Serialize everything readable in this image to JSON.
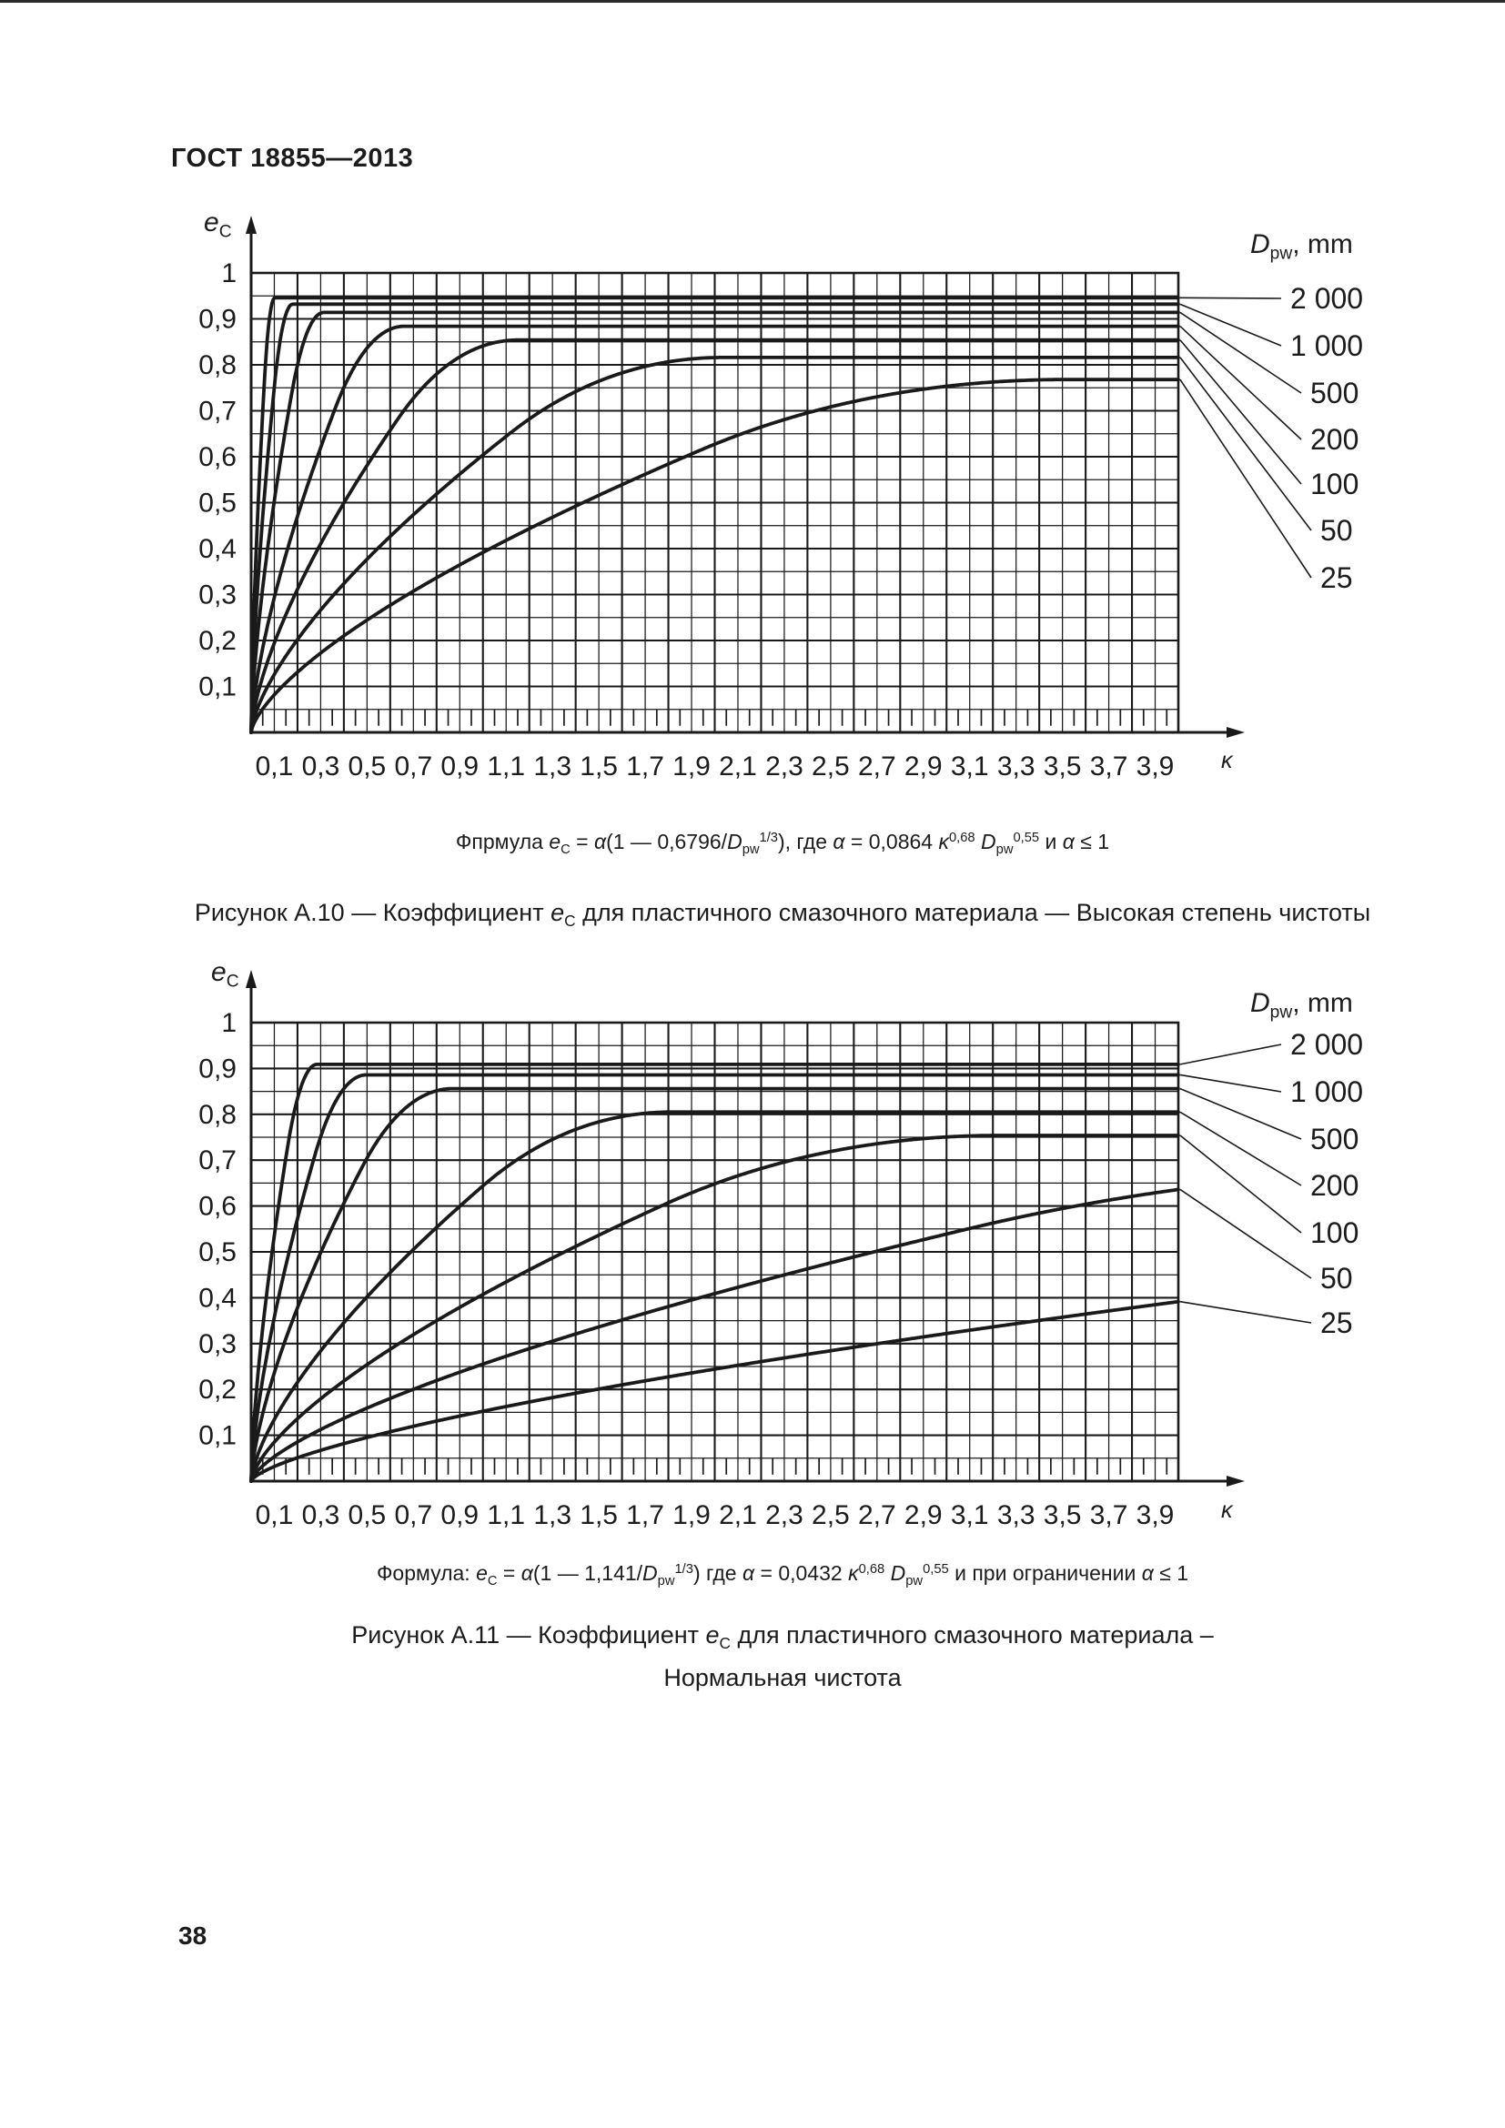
{
  "page": {
    "header": "ГОСТ 18855—2013",
    "page_number": "38"
  },
  "figures": [
    {
      "id": "A.10",
      "y_axis_title": [
        {
          "t": "e",
          "i": 1
        },
        {
          "t": "C",
          "v": "sub"
        }
      ],
      "x_axis_title": [
        {
          "t": "κ",
          "i": 1
        }
      ],
      "legend_title": [
        {
          "t": "D",
          "i": 1
        },
        {
          "t": "pw",
          "v": "sub"
        },
        {
          "t": ", mm"
        }
      ],
      "formula": [
        {
          "t": "Фпрмула "
        },
        {
          "t": "e",
          "i": 1
        },
        {
          "t": "C",
          "v": "sub"
        },
        {
          "t": " = "
        },
        {
          "t": "α",
          "i": 1
        },
        {
          "t": "(1 — 0,6796/"
        },
        {
          "t": "D",
          "i": 1
        },
        {
          "t": "pw",
          "v": "sub"
        },
        {
          "t": "1/3",
          "v": "sup"
        },
        {
          "t": "), где "
        },
        {
          "t": "α",
          "i": 1
        },
        {
          "t": " = 0,0864 "
        },
        {
          "t": "κ",
          "i": 1
        },
        {
          "t": "0,68",
          "v": "sup"
        },
        {
          "t": " "
        },
        {
          "t": "D",
          "i": 1
        },
        {
          "t": "pw",
          "v": "sub"
        },
        {
          "t": "0,55",
          "v": "sup"
        },
        {
          "t": " и "
        },
        {
          "t": "α",
          "i": 1
        },
        {
          "t": " ≤ 1"
        }
      ],
      "caption": [
        {
          "t": "Рисунок А.10 — Коэффициент "
        },
        {
          "t": "e",
          "i": 1
        },
        {
          "t": "C",
          "v": "sub"
        },
        {
          "t": " для пластичного смазочного материала — Высокая степень чистоты"
        }
      ]
    },
    {
      "id": "A.11",
      "y_axis_title": [
        {
          "t": "e",
          "i": 1
        },
        {
          "t": "C",
          "v": "sub"
        }
      ],
      "x_axis_title": [
        {
          "t": "κ",
          "i": 1
        }
      ],
      "legend_title": [
        {
          "t": "D",
          "i": 1
        },
        {
          "t": "pw",
          "v": "sub"
        },
        {
          "t": ", mm"
        }
      ],
      "formula": [
        {
          "t": "Формула: "
        },
        {
          "t": "e",
          "i": 1
        },
        {
          "t": "C",
          "v": "sub"
        },
        {
          "t": " = "
        },
        {
          "t": "α",
          "i": 1
        },
        {
          "t": "(1 — 1,141/"
        },
        {
          "t": "D",
          "i": 1
        },
        {
          "t": "pw",
          "v": "sub"
        },
        {
          "t": "1/3",
          "v": "sup"
        },
        {
          "t": ") где "
        },
        {
          "t": "α",
          "i": 1
        },
        {
          "t": " = 0,0432 "
        },
        {
          "t": "κ",
          "i": 1
        },
        {
          "t": "0,68",
          "v": "sup"
        },
        {
          "t": " "
        },
        {
          "t": "D",
          "i": 1
        },
        {
          "t": "pw",
          "v": "sub"
        },
        {
          "t": "0,55",
          "v": "sup"
        },
        {
          "t": " и при ограничении "
        },
        {
          "t": "α",
          "i": 1
        },
        {
          "t": " ≤ 1"
        }
      ],
      "caption": [
        {
          "t": "Рисунок А.11 — Коэффициент "
        },
        {
          "t": "e",
          "i": 1
        },
        {
          "t": "C",
          "v": "sub"
        },
        {
          "t": " для пластичного смазочного материала –"
        },
        {
          "br": 1
        },
        {
          "t": "Нормальная чистота"
        }
      ]
    }
  ],
  "chart_data": [
    {
      "type": "line",
      "title": "Рисунок А.10 — Коэффициент eC для пластичного смазочного материала — Высокая степень чистоты",
      "xlabel": "κ",
      "ylabel": "eC",
      "xlim": [
        0,
        4.0
      ],
      "ylim": [
        0,
        1.0
      ],
      "grid": {
        "x_step": 0.1,
        "x_major_step": 0.2,
        "y_step": 0.05,
        "y_major_step": 0.1,
        "minor_x_ticks_step": 0.05
      },
      "x_tick_labels": [
        "0,1",
        "0,3",
        "0,5",
        "0,7",
        "0,9",
        "1,1",
        "1,3",
        "1,5",
        "1,7",
        "1,9",
        "2,1",
        "2,3",
        "2,5",
        "2,7",
        "2,9",
        "3,1",
        "3,3",
        "3,5",
        "3,7",
        "3,9"
      ],
      "x_tick_values": [
        0.1,
        0.3,
        0.5,
        0.7,
        0.9,
        1.1,
        1.3,
        1.5,
        1.7,
        1.9,
        2.1,
        2.3,
        2.5,
        2.7,
        2.9,
        3.1,
        3.3,
        3.5,
        3.7,
        3.9
      ],
      "y_tick_labels": [
        "1",
        "0,9",
        "0,8",
        "0,7",
        "0,6",
        "0,5",
        "0,4",
        "0,3",
        "0,2",
        "0,1"
      ],
      "y_tick_values": [
        1,
        0.9,
        0.8,
        0.7,
        0.6,
        0.5,
        0.4,
        0.3,
        0.2,
        0.1
      ],
      "legend_title": "Dpw, mm",
      "legend_position": "right",
      "model": "eC(κ) = saturation × min(1, alpha_coef·κ^0.68); eC = α(1 — 0,6796/Dpw^(1/3)), α = 0,0864·κ^0,68·Dpw^0,55, α ≤ 1",
      "sample_x": [
        0.25,
        0.5,
        1,
        1.5,
        2,
        3,
        4
      ],
      "series": [
        {
          "name": "2 000",
          "Dpw": 2000,
          "alpha_coef": 5.65,
          "saturation": 0.946,
          "sample_y": [
            0.946,
            0.946,
            0.946,
            0.946,
            0.946,
            0.946,
            0.946
          ]
        },
        {
          "name": "1 000",
          "Dpw": 1000,
          "alpha_coef": 3.86,
          "saturation": 0.932,
          "sample_y": [
            0.932,
            0.932,
            0.932,
            0.932,
            0.932,
            0.932,
            0.932
          ]
        },
        {
          "name": "500",
          "Dpw": 500,
          "alpha_coef": 2.64,
          "saturation": 0.914,
          "sample_y": [
            0.91,
            0.914,
            0.914,
            0.914,
            0.914,
            0.914,
            0.914
          ]
        },
        {
          "name": "200",
          "Dpw": 200,
          "alpha_coef": 1.59,
          "saturation": 0.884,
          "sample_y": [
            0.55,
            0.88,
            0.884,
            0.884,
            0.884,
            0.884,
            0.884
          ]
        },
        {
          "name": "100",
          "Dpw": 100,
          "alpha_coef": 1.09,
          "saturation": 0.854,
          "sample_y": [
            0.36,
            0.58,
            0.854,
            0.854,
            0.854,
            0.854,
            0.854
          ]
        },
        {
          "name": "50",
          "Dpw": 50,
          "alpha_coef": 0.74,
          "saturation": 0.816,
          "sample_y": [
            0.24,
            0.38,
            0.61,
            0.8,
            0.816,
            0.816,
            0.816
          ]
        },
        {
          "name": "25",
          "Dpw": 25,
          "alpha_coef": 0.51,
          "saturation": 0.768,
          "sample_y": [
            0.15,
            0.24,
            0.39,
            0.51,
            0.62,
            0.767,
            0.768
          ]
        }
      ]
    },
    {
      "type": "line",
      "title": "Рисунок А.11 — Коэффициент eC для пластичного смазочного материала – Нормальная чистота",
      "xlabel": "κ",
      "ylabel": "eC",
      "xlim": [
        0,
        4.0
      ],
      "ylim": [
        0,
        1.0
      ],
      "grid": {
        "x_step": 0.1,
        "x_major_step": 0.2,
        "y_step": 0.05,
        "y_major_step": 0.1,
        "minor_x_ticks_step": 0.05
      },
      "x_tick_labels": [
        "0,1",
        "0,3",
        "0,5",
        "0,7",
        "0,9",
        "1,1",
        "1,3",
        "1,5",
        "1,7",
        "1,9",
        "2,1",
        "2,3",
        "2,5",
        "2,7",
        "2,9",
        "3,1",
        "3,3",
        "3,5",
        "3,7",
        "3,9"
      ],
      "x_tick_values": [
        0.1,
        0.3,
        0.5,
        0.7,
        0.9,
        1.1,
        1.3,
        1.5,
        1.7,
        1.9,
        2.1,
        2.3,
        2.5,
        2.7,
        2.9,
        3.1,
        3.3,
        3.5,
        3.7,
        3.9
      ],
      "y_tick_labels": [
        "1",
        "0,9",
        "0,8",
        "0,7",
        "0,6",
        "0,5",
        "0,4",
        "0,3",
        "0,2",
        "0,1"
      ],
      "y_tick_values": [
        1,
        0.9,
        0.8,
        0.7,
        0.6,
        0.5,
        0.4,
        0.3,
        0.2,
        0.1
      ],
      "legend_title": "Dpw, mm",
      "legend_position": "right",
      "model": "eC(κ) = saturation × min(1, alpha_coef·κ^0.68); eC = α(1 — 1,141/Dpw^(1/3)), α = 0,0432·κ^0,68·Dpw^0,55, α ≤ 1",
      "sample_x": [
        0.25,
        0.5,
        1,
        1.5,
        2,
        3,
        4
      ],
      "series": [
        {
          "name": "2 000",
          "Dpw": 2000,
          "alpha_coef": 2.82,
          "saturation": 0.909,
          "sample_y": [
            0.909,
            0.909,
            0.909,
            0.909,
            0.909,
            0.909,
            0.909
          ]
        },
        {
          "name": "1 000",
          "Dpw": 1000,
          "alpha_coef": 1.93,
          "saturation": 0.886,
          "sample_y": [
            0.67,
            0.886,
            0.886,
            0.886,
            0.886,
            0.886,
            0.886
          ]
        },
        {
          "name": "500",
          "Dpw": 500,
          "alpha_coef": 1.32,
          "saturation": 0.856,
          "sample_y": [
            0.44,
            0.7,
            0.856,
            0.856,
            0.856,
            0.856,
            0.856
          ]
        },
        {
          "name": "200",
          "Dpw": 200,
          "alpha_coef": 0.8,
          "saturation": 0.805,
          "sample_y": [
            0.25,
            0.4,
            0.64,
            0.805,
            0.805,
            0.805,
            0.805
          ]
        },
        {
          "name": "100",
          "Dpw": 100,
          "alpha_coef": 0.54,
          "saturation": 0.754,
          "sample_y": [
            0.16,
            0.26,
            0.41,
            0.54,
            0.66,
            0.754,
            0.754
          ]
        },
        {
          "name": "50",
          "Dpw": 50,
          "alpha_coef": 0.37,
          "saturation": 0.69,
          "sample_y": [
            0.1,
            0.16,
            0.26,
            0.34,
            0.41,
            0.54,
            0.66
          ]
        },
        {
          "name": "25",
          "Dpw": 25,
          "alpha_coef": 0.25,
          "saturation": 0.61,
          "sample_y": [
            0.06,
            0.1,
            0.15,
            0.2,
            0.25,
            0.33,
            0.4
          ]
        }
      ]
    }
  ]
}
